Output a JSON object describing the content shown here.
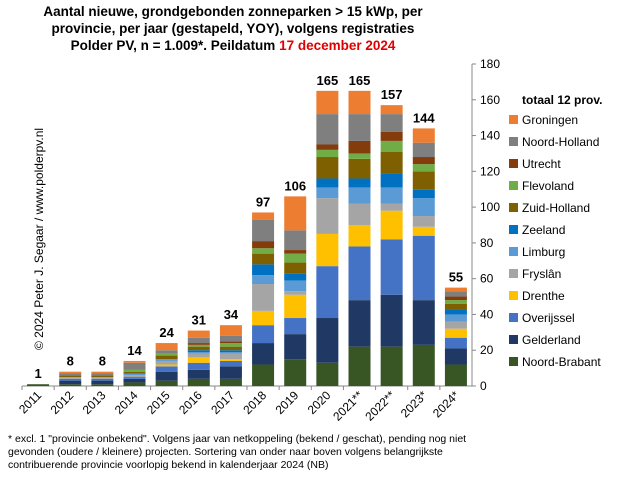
{
  "title": {
    "line1": "Aantal nieuwe, grondgebonden zonneparken > 15 kWp, per",
    "line2": "provincie, per jaar (gestapeld, YOY), volgens registraties",
    "line3_prefix": "Polder PV, n = 1.009*. Peildatum ",
    "line3_date": "17 december 2024"
  },
  "credit": "© 2024 Peter J. Segaar / www.polderpv.nl",
  "footnote": {
    "line1": "* excl. 1 \"provincie onbekend\". Volgens jaar van netkoppeling (bekend / geschat), pending nog niet",
    "line2": "gevonden (oudere / kleinere) projecten. Sortering van onder naar boven volgens belangrijkste",
    "line3": "contribuerende provincie voorlopig bekend in kalenderjaar 2024 (NB)"
  },
  "chart_data": {
    "type": "bar",
    "stacked": true,
    "categories": [
      "2011",
      "2012",
      "2013",
      "2014",
      "2015",
      "2016",
      "2017",
      "2018",
      "2019",
      "2020",
      "2021**",
      "2022**",
      "2023*",
      "2024*"
    ],
    "totals": [
      1,
      8,
      8,
      14,
      24,
      31,
      34,
      97,
      106,
      165,
      165,
      157,
      144,
      55
    ],
    "ylim": [
      0,
      180
    ],
    "yticks": [
      0,
      20,
      40,
      60,
      80,
      100,
      120,
      140,
      160,
      180
    ],
    "legend_title": "totaal 12 prov.",
    "legend_position": "right",
    "series": [
      {
        "name": "Noord-Brabant",
        "color": "#375623",
        "values": [
          1,
          1,
          1,
          2,
          3,
          4,
          4,
          12,
          15,
          13,
          22,
          22,
          23,
          12
        ]
      },
      {
        "name": "Gelderland",
        "color": "#1f3864",
        "values": [
          0,
          2,
          2,
          2,
          5,
          5,
          7,
          12,
          14,
          25,
          26,
          29,
          25,
          9
        ]
      },
      {
        "name": "Overijssel",
        "color": "#4472c4",
        "values": [
          0,
          1,
          1,
          1,
          3,
          4,
          3,
          10,
          9,
          29,
          30,
          31,
          36,
          6
        ]
      },
      {
        "name": "Drenthe",
        "color": "#ffc000",
        "values": [
          0,
          0,
          0,
          0,
          1,
          3,
          1,
          8,
          13,
          18,
          12,
          16,
          5,
          5
        ]
      },
      {
        "name": "Fryslân",
        "color": "#a5a5a5",
        "values": [
          0,
          1,
          1,
          1,
          2,
          2,
          3,
          15,
          2,
          20,
          12,
          4,
          6,
          4
        ]
      },
      {
        "name": "Limburg",
        "color": "#5b9bd5",
        "values": [
          0,
          0,
          0,
          1,
          1,
          1,
          1,
          5,
          6,
          6,
          9,
          9,
          10,
          4
        ]
      },
      {
        "name": "Zeeland",
        "color": "#0070c0",
        "values": [
          0,
          0,
          0,
          0,
          0,
          1,
          1,
          6,
          4,
          5,
          5,
          8,
          5,
          3
        ]
      },
      {
        "name": "Zuid-Holland",
        "color": "#7f6000",
        "values": [
          0,
          1,
          1,
          1,
          2,
          2,
          2,
          6,
          6,
          12,
          11,
          12,
          10,
          3
        ]
      },
      {
        "name": "Flevoland",
        "color": "#70ad47",
        "values": [
          0,
          0,
          0,
          1,
          1,
          1,
          2,
          3,
          5,
          4,
          3,
          6,
          4,
          2
        ]
      },
      {
        "name": "Utrecht",
        "color": "#843c0c",
        "values": [
          0,
          0,
          0,
          0,
          0,
          1,
          1,
          4,
          2,
          3,
          7,
          5,
          4,
          2
        ]
      },
      {
        "name": "Noord-Holland",
        "color": "#7f7f7f",
        "values": [
          0,
          1,
          1,
          4,
          2,
          3,
          3,
          12,
          11,
          17,
          15,
          10,
          8,
          3
        ]
      },
      {
        "name": "Groningen",
        "color": "#ed7d31",
        "values": [
          0,
          1,
          1,
          1,
          4,
          4,
          6,
          4,
          19,
          13,
          13,
          5,
          8,
          2
        ]
      }
    ]
  }
}
